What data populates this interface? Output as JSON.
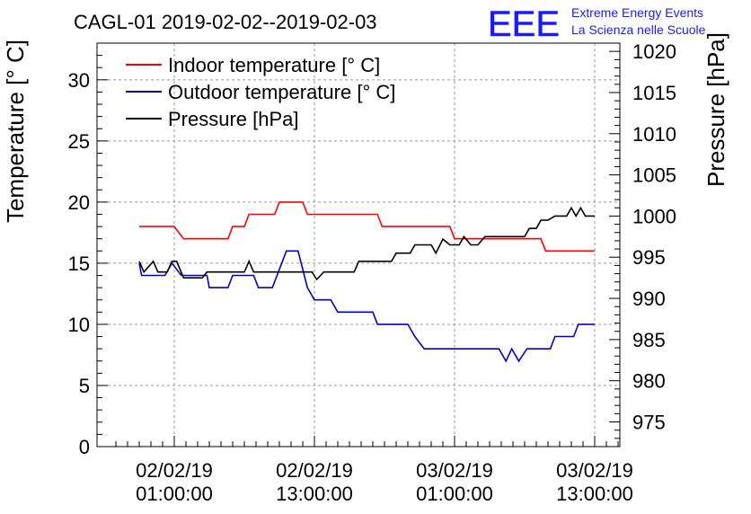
{
  "chart_data": {
    "type": "line",
    "title": "CAGL-01 2019-02-02--2019-02-03",
    "logo": {
      "text": "EEE",
      "line1": "Extreme Energy Events",
      "line2": "La Scienza nelle Scuole",
      "color": "#1a1aff"
    },
    "ylabel_left": "Temperature [° C]",
    "ylabel_right": "Pressure [hPa]",
    "grid": true,
    "legend_position": "top-left",
    "x_hours_range": [
      -3,
      36
    ],
    "x_ticks": [
      {
        "hour": 0,
        "date": "02/02/19",
        "time": "01:00:00"
      },
      {
        "hour": 12,
        "date": "02/02/19",
        "time": "13:00:00"
      },
      {
        "hour": 24,
        "date": "03/02/19",
        "time": "01:00:00"
      },
      {
        "hour": 36,
        "date": "03/02/19",
        "time": "13:00:00"
      }
    ],
    "y_left": {
      "min": 0,
      "max": 33,
      "ticks": [
        "0",
        "5",
        "10",
        "15",
        "20",
        "25",
        "30"
      ]
    },
    "y_right": {
      "min": 972,
      "max": 1021,
      "ticks": [
        "975",
        "980",
        "985",
        "990",
        "995",
        "1000",
        "1005",
        "1010",
        "1015",
        "1020"
      ]
    },
    "series": [
      {
        "name": "Indoor temperature [° C]",
        "color": "#ff0000",
        "axis": "left",
        "points": [
          [
            -3,
            18
          ],
          [
            0,
            18
          ],
          [
            0.8,
            17
          ],
          [
            4.6,
            17
          ],
          [
            5,
            18
          ],
          [
            6,
            18
          ],
          [
            6.4,
            19
          ],
          [
            8.6,
            19
          ],
          [
            9,
            20
          ],
          [
            11,
            20
          ],
          [
            11.4,
            19
          ],
          [
            17.4,
            19
          ],
          [
            17.8,
            18
          ],
          [
            22,
            18
          ],
          [
            22.4,
            18
          ],
          [
            23.6,
            18
          ],
          [
            24,
            17
          ],
          [
            31.4,
            17
          ],
          [
            31.8,
            16
          ],
          [
            36,
            16
          ]
        ]
      },
      {
        "name": "Outdoor temperature [° C]",
        "color": "#0000cc",
        "axis": "left",
        "points": [
          [
            -3,
            15
          ],
          [
            -2.8,
            14
          ],
          [
            -0.8,
            14
          ],
          [
            -0.2,
            15
          ],
          [
            0.6,
            14
          ],
          [
            2.8,
            14
          ],
          [
            3,
            13
          ],
          [
            4.6,
            13
          ],
          [
            5,
            14
          ],
          [
            6.8,
            14
          ],
          [
            7.2,
            13
          ],
          [
            8.4,
            13
          ],
          [
            9.6,
            16
          ],
          [
            10.6,
            16
          ],
          [
            11.4,
            13
          ],
          [
            12,
            12
          ],
          [
            13.4,
            12
          ],
          [
            14,
            11
          ],
          [
            17,
            11
          ],
          [
            17.4,
            10
          ],
          [
            20,
            10
          ],
          [
            20.6,
            9
          ],
          [
            21.4,
            8
          ],
          [
            27.8,
            8
          ],
          [
            28.4,
            7
          ],
          [
            28.9,
            8
          ],
          [
            29.5,
            7
          ],
          [
            30.2,
            8
          ],
          [
            32.2,
            8
          ],
          [
            32.6,
            9
          ],
          [
            34.2,
            9
          ],
          [
            34.6,
            10
          ],
          [
            36,
            10
          ]
        ]
      },
      {
        "name": "Pressure [hPa]",
        "color": "#000000",
        "axis": "right",
        "points": [
          [
            -3,
            994.5
          ],
          [
            -2.6,
            993.2
          ],
          [
            -1.8,
            994.5
          ],
          [
            -1.4,
            993.2
          ],
          [
            -0.6,
            993.2
          ],
          [
            -0.2,
            994.5
          ],
          [
            0.2,
            994.5
          ],
          [
            0.8,
            992.5
          ],
          [
            2.4,
            992.5
          ],
          [
            2.8,
            993.2
          ],
          [
            6,
            993.2
          ],
          [
            6.4,
            994.5
          ],
          [
            6.8,
            993.2
          ],
          [
            11.8,
            993.2
          ],
          [
            12.2,
            992.3
          ],
          [
            12.8,
            993.2
          ],
          [
            15.4,
            993.2
          ],
          [
            15.8,
            994.5
          ],
          [
            18.6,
            994.5
          ],
          [
            19,
            995.5
          ],
          [
            20.2,
            995.5
          ],
          [
            20.6,
            996.5
          ],
          [
            22,
            996.5
          ],
          [
            22.4,
            995.5
          ],
          [
            23,
            997.2
          ],
          [
            23.6,
            996.5
          ],
          [
            24.4,
            996.5
          ],
          [
            24.8,
            997.5
          ],
          [
            25.4,
            996.5
          ],
          [
            26,
            996.5
          ],
          [
            26.6,
            997.5
          ],
          [
            28,
            997.5
          ],
          [
            28.4,
            997.5
          ],
          [
            30,
            997.5
          ],
          [
            30.4,
            998.5
          ],
          [
            31,
            998.5
          ],
          [
            31.4,
            999.5
          ],
          [
            32,
            999.5
          ],
          [
            32.6,
            1000
          ],
          [
            33.6,
            1000
          ],
          [
            34,
            1001
          ],
          [
            34.4,
            1000
          ],
          [
            34.8,
            1001
          ],
          [
            35.2,
            1000
          ],
          [
            36,
            1000
          ]
        ]
      }
    ]
  }
}
